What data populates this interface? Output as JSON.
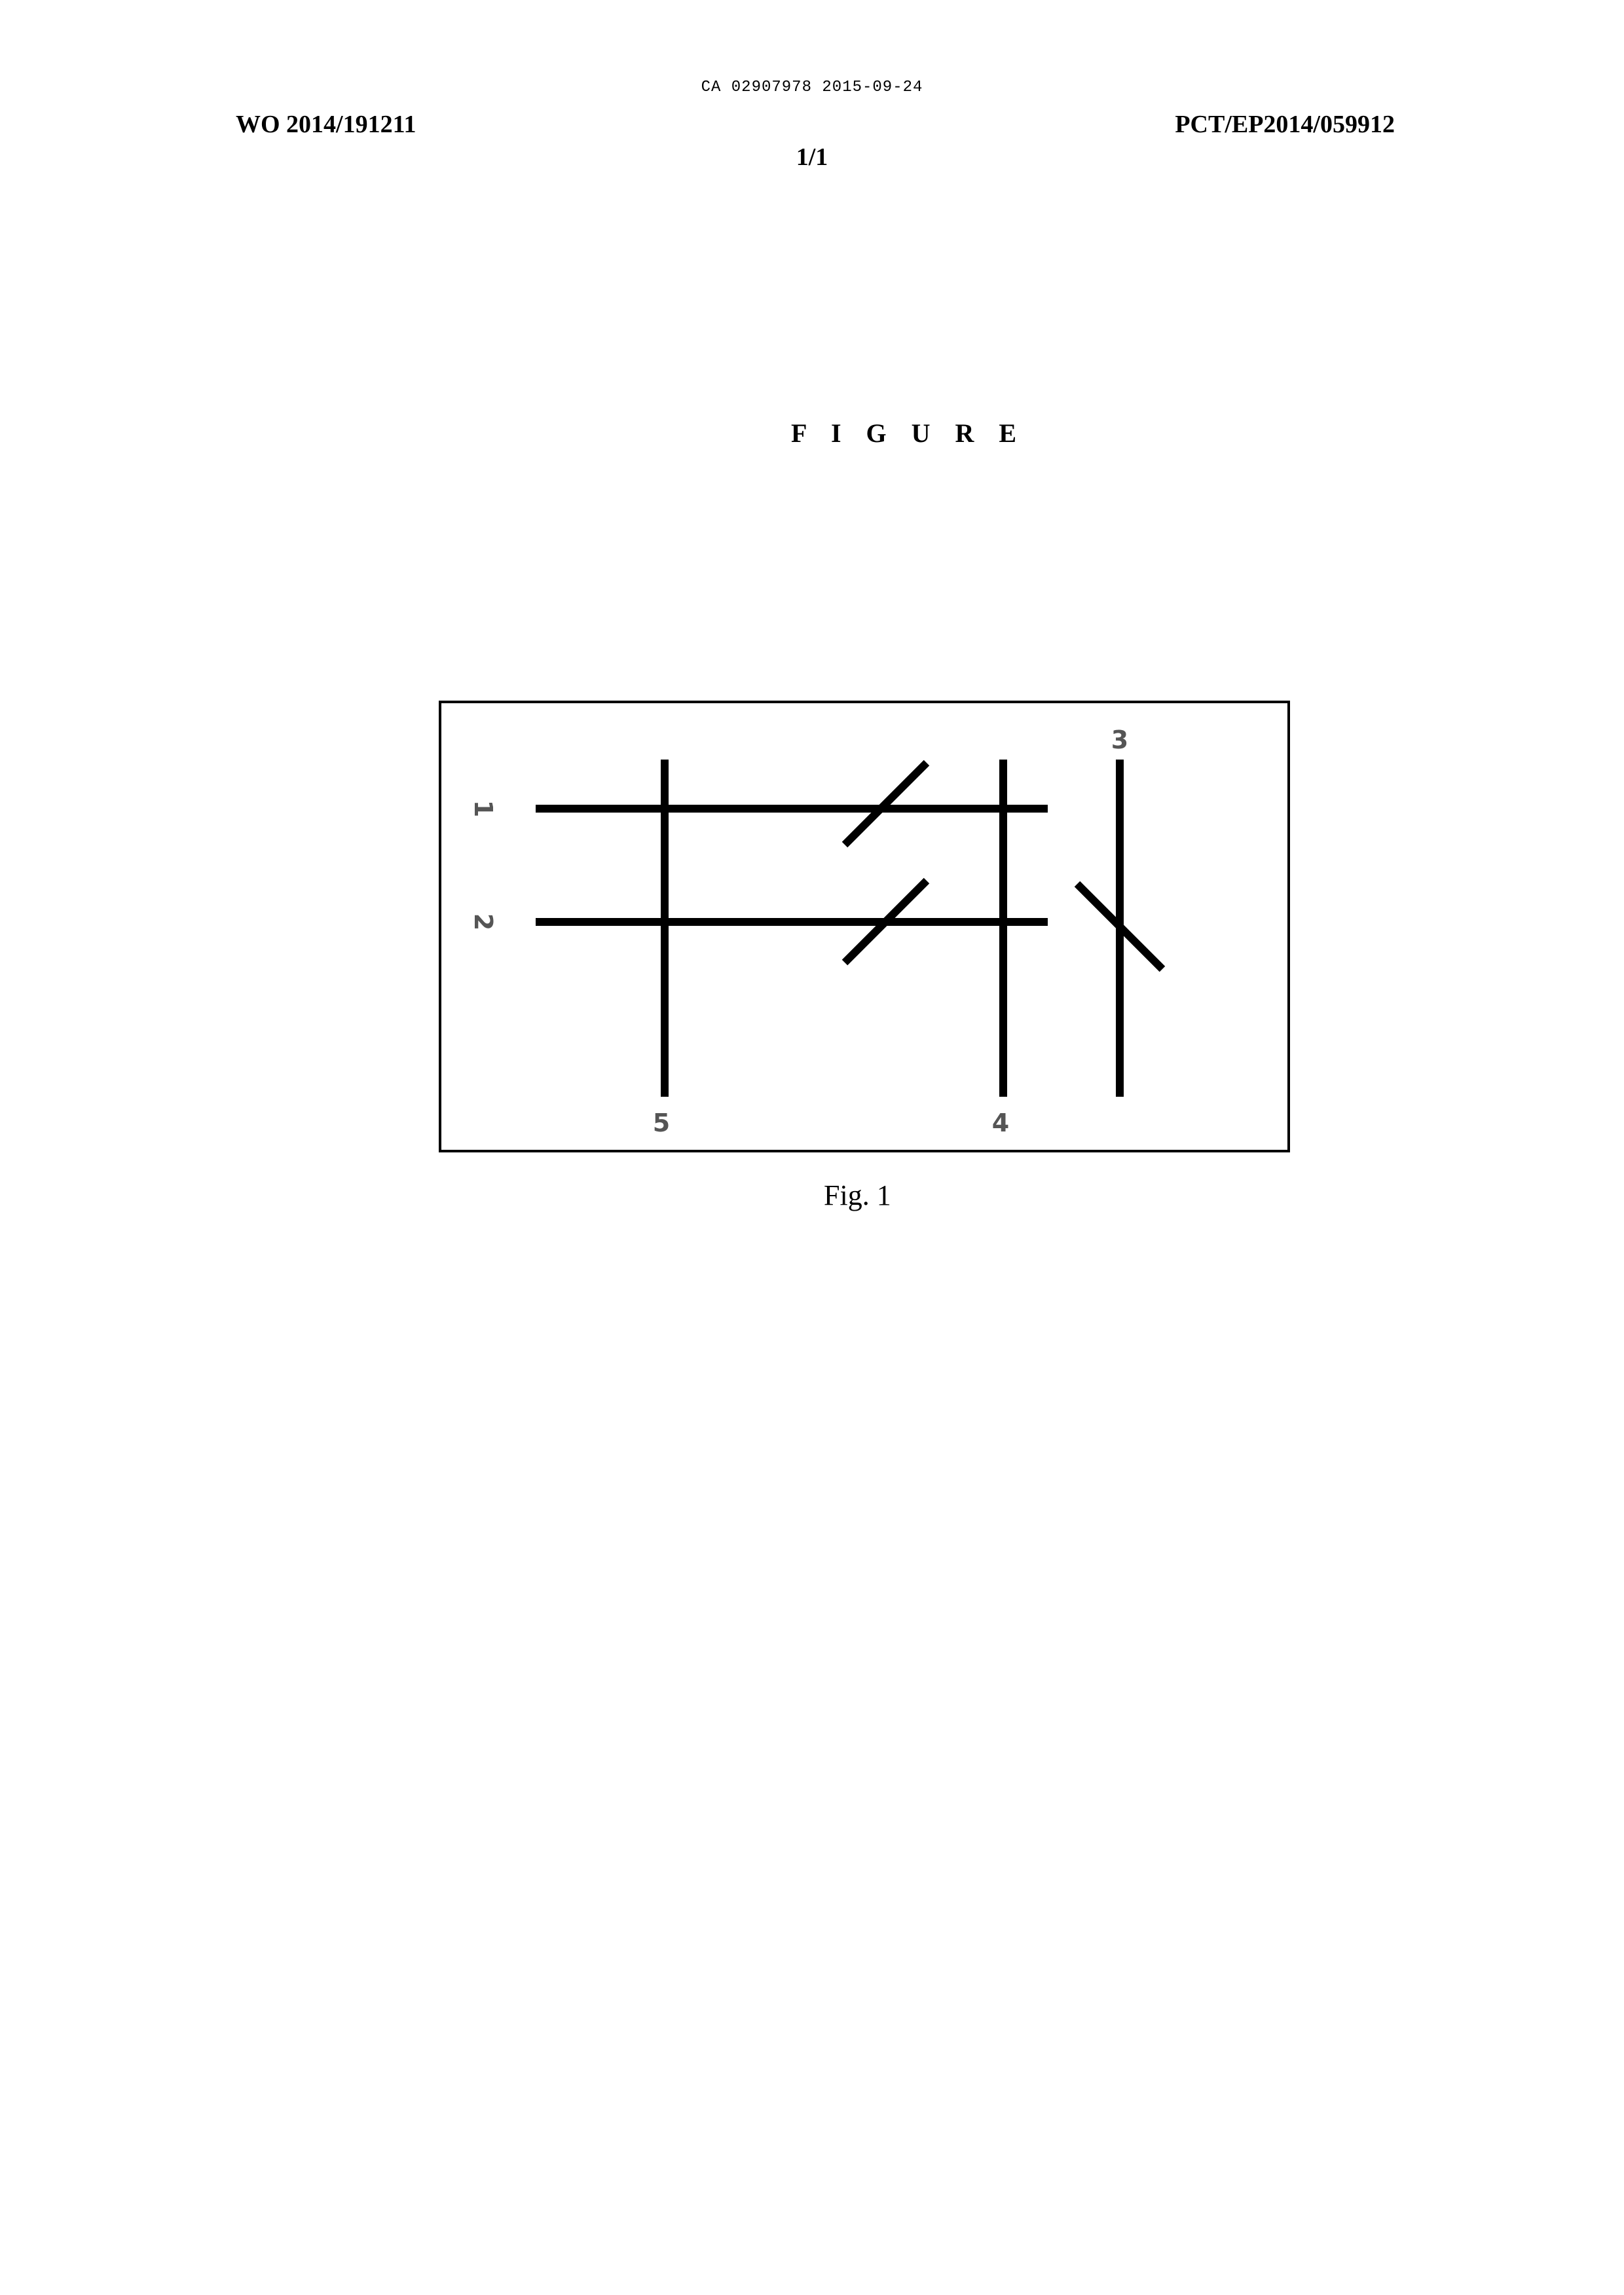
{
  "header": {
    "stamp": "CA 02907978 2015-09-24",
    "publication_number": "WO 2014/191211",
    "application_number": "PCT/EP2014/059912",
    "sheet": "1/1"
  },
  "figure_heading": "F I G U R E",
  "diagram": {
    "labels": {
      "line_1": "1",
      "line_2": "2",
      "line_3": "3",
      "line_4": "4",
      "line_5": "5"
    }
  },
  "caption": "Fig. 1"
}
